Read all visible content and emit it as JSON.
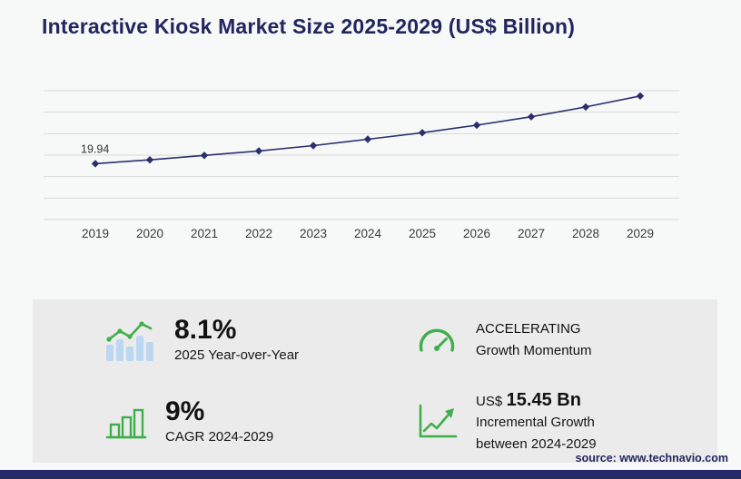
{
  "title": "Interactive Kiosk Market Size 2025-2029 (US$ Billion)",
  "chart_data": {
    "type": "line",
    "title": "Interactive Kiosk Market Size 2025-2029 (US$ Billion)",
    "x": [
      2019,
      2020,
      2021,
      2022,
      2023,
      2024,
      2025,
      2026,
      2027,
      2028,
      2029
    ],
    "series": [
      {
        "name": "Market Size (US$ Billion)",
        "values": [
          19.94,
          21.3,
          22.9,
          24.5,
          26.4,
          28.68,
          31.0,
          33.7,
          36.7,
          40.2,
          44.13
        ]
      }
    ],
    "point_labels": [
      {
        "index": 0,
        "text": "19.94"
      }
    ],
    "ylim": [
      0,
      46
    ],
    "grid": true,
    "gridline_count": 7,
    "line_color": "#2b2f6e",
    "marker": "diamond",
    "tick_color": "#3a3a3a",
    "legend_position": "none",
    "xlabel": "",
    "ylabel": ""
  },
  "stats": {
    "yoy": {
      "value": "8.1%",
      "label": "2025 Year-over-Year"
    },
    "momentum": {
      "line1": "ACCELERATING",
      "line2": "Growth Momentum"
    },
    "cagr": {
      "value": "9%",
      "label": "CAGR 2024-2029"
    },
    "incremental": {
      "currency": "US$",
      "value": "15.45 Bn",
      "line1": "Incremental Growth",
      "line2": "between 2024-2029"
    }
  },
  "source": "source: www.technavio.com",
  "icons": {
    "yoy": "growth-bars-icon",
    "momentum": "speedometer-icon",
    "cagr": "bar-chart-icon",
    "incremental": "growth-arrow-icon"
  },
  "colors": {
    "accent_green": "#3faf4b",
    "navy": "#262a68",
    "panel_gray": "#ebebec",
    "gridline": "#d9d9d9"
  }
}
